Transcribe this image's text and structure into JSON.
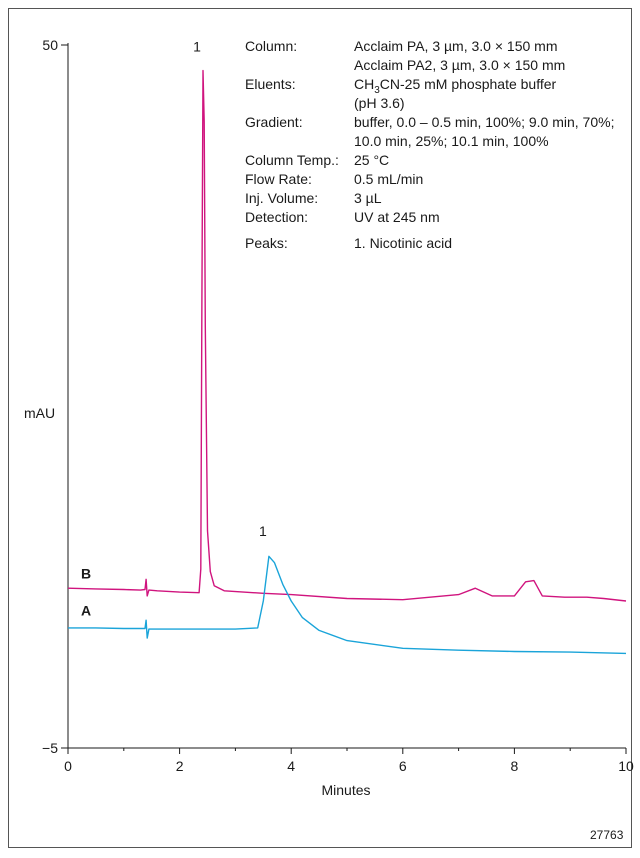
{
  "chart_data": {
    "type": "line",
    "xlabel": "Minutes",
    "ylabel": "mAU",
    "xlim": [
      0,
      10
    ],
    "ylim": [
      -5,
      50
    ],
    "xticks": [
      0,
      2,
      4,
      6,
      8,
      10
    ],
    "yticks": [
      -5,
      50
    ],
    "xtick_labels": [
      "0",
      "2",
      "4",
      "6",
      "8",
      "10"
    ],
    "ytick_labels": [
      "−5",
      "50"
    ],
    "series": [
      {
        "name": "B",
        "color": "#d0147e",
        "points": [
          [
            0,
            7.5
          ],
          [
            0.5,
            7.45
          ],
          [
            1.0,
            7.4
          ],
          [
            1.3,
            7.35
          ],
          [
            1.38,
            7.4
          ],
          [
            1.4,
            8.2
          ],
          [
            1.42,
            6.9
          ],
          [
            1.45,
            7.35
          ],
          [
            1.6,
            7.3
          ],
          [
            2.0,
            7.2
          ],
          [
            2.35,
            7.15
          ],
          [
            2.38,
            9
          ],
          [
            2.4,
            30
          ],
          [
            2.42,
            48
          ],
          [
            2.44,
            44
          ],
          [
            2.46,
            28
          ],
          [
            2.5,
            12
          ],
          [
            2.55,
            8.8
          ],
          [
            2.62,
            7.7
          ],
          [
            2.8,
            7.3
          ],
          [
            3.5,
            7.1
          ],
          [
            4.0,
            7.0
          ],
          [
            5.0,
            6.7
          ],
          [
            6.0,
            6.6
          ],
          [
            7.0,
            7.0
          ],
          [
            7.3,
            7.5
          ],
          [
            7.6,
            6.9
          ],
          [
            8.0,
            6.9
          ],
          [
            8.2,
            8.0
          ],
          [
            8.35,
            8.1
          ],
          [
            8.5,
            6.9
          ],
          [
            8.9,
            6.8
          ],
          [
            9.3,
            6.8
          ],
          [
            9.6,
            6.7
          ],
          [
            10.0,
            6.5
          ]
        ]
      },
      {
        "name": "A",
        "color": "#1aa4d9",
        "points": [
          [
            0,
            4.4
          ],
          [
            0.5,
            4.4
          ],
          [
            1.0,
            4.35
          ],
          [
            1.38,
            4.35
          ],
          [
            1.4,
            5.0
          ],
          [
            1.42,
            3.6
          ],
          [
            1.45,
            4.3
          ],
          [
            2.0,
            4.3
          ],
          [
            3.0,
            4.3
          ],
          [
            3.4,
            4.4
          ],
          [
            3.5,
            6.5
          ],
          [
            3.6,
            10.0
          ],
          [
            3.7,
            9.5
          ],
          [
            3.85,
            7.8
          ],
          [
            4.0,
            6.5
          ],
          [
            4.2,
            5.2
          ],
          [
            4.5,
            4.2
          ],
          [
            5.0,
            3.4
          ],
          [
            6.0,
            2.8
          ],
          [
            7.0,
            2.65
          ],
          [
            8.0,
            2.55
          ],
          [
            9.0,
            2.5
          ],
          [
            10.0,
            2.4
          ]
        ]
      }
    ],
    "peak_labels": [
      {
        "text": "1",
        "x": 2.42,
        "y": 49.5
      },
      {
        "text": "1",
        "x": 3.6,
        "y": 11.6
      }
    ],
    "series_labels": [
      {
        "text": "B",
        "y": 8.1
      },
      {
        "text": "A",
        "y": 5.2
      }
    ],
    "grid": false
  },
  "conditions": [
    {
      "label": "Column:",
      "value": "Acclaim PA, 3 µm, 3.0 × 150 mm"
    },
    {
      "label": "",
      "value": "Acclaim PA2, 3 µm, 3.0 × 150 mm"
    },
    {
      "label": "Eluents:",
      "value": "CH3CN-25 mM phosphate buffer"
    },
    {
      "label": "",
      "value": "(pH 3.6)"
    },
    {
      "label": "Gradient:",
      "value": "buffer, 0.0 – 0.5 min, 100%; 9.0 min, 70%;"
    },
    {
      "label": "",
      "value": "10.0 min, 25%; 10.1 min, 100%"
    },
    {
      "label": "Column Temp.:",
      "value": "25 °C"
    },
    {
      "label": "Flow Rate:",
      "value": "0.5 mL/min"
    },
    {
      "label": "Inj. Volume:",
      "value": "3 µL"
    },
    {
      "label": "Detection:",
      "value": "UV at 245 nm"
    }
  ],
  "peaks": {
    "label": "Peaks:",
    "value": "1. Nicotinic acid"
  },
  "doc_number": "27763"
}
